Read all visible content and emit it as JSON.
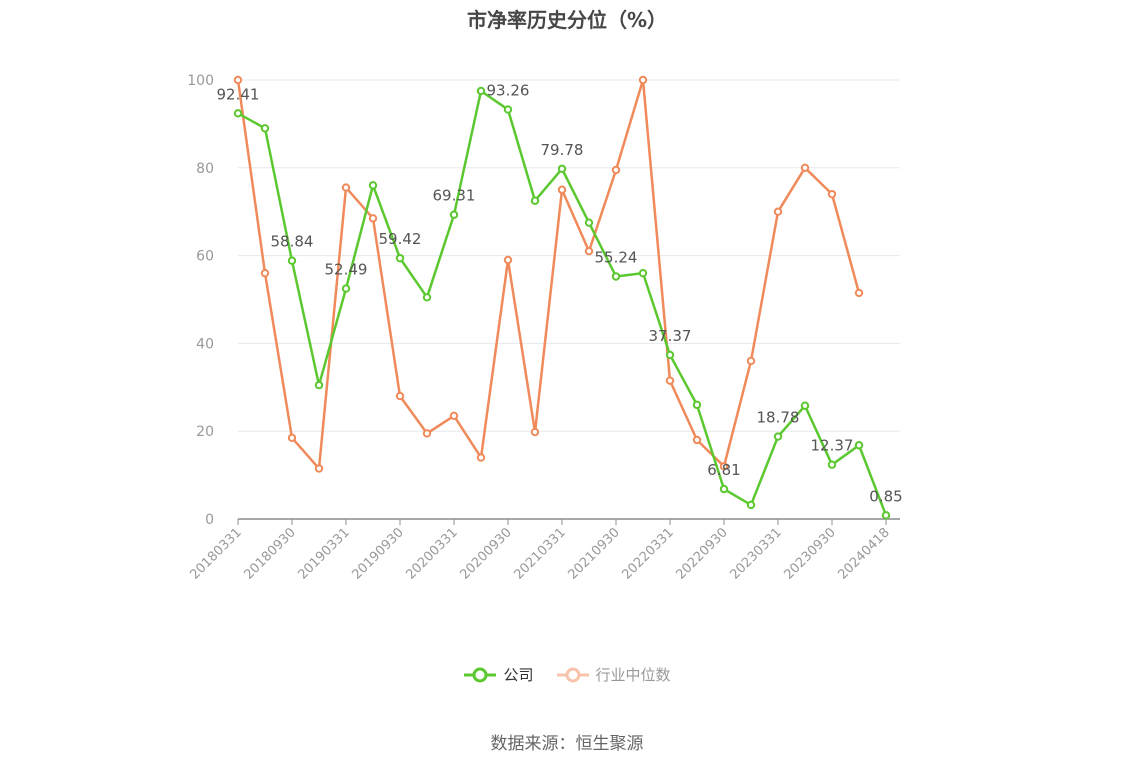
{
  "title": "市净率历史分位（%）",
  "source": "数据来源：恒生聚源",
  "colors": {
    "company": "#5bc82f",
    "industry": "#f08a5a",
    "grid": "#e6e8ef",
    "axis": "#8c8c8c",
    "tick_text": "#999999",
    "label_text": "#555555"
  },
  "chart_data": {
    "type": "line",
    "title": "市净率历史分位（%）",
    "ylim": [
      0,
      100
    ],
    "yticks": [
      0,
      20,
      40,
      60,
      80,
      100
    ],
    "grid": true,
    "legend_position": "bottom",
    "x": [
      "20180331",
      "20180630",
      "20180930",
      "20181231",
      "20190331",
      "20190630",
      "20190930",
      "20191231",
      "20200331",
      "20200630",
      "20200930",
      "20201231",
      "20210331",
      "20210630",
      "20210930",
      "20211231",
      "20220331",
      "20220630",
      "20220930",
      "20221231",
      "20230331",
      "20230630",
      "20230930",
      "20231231",
      "20240418"
    ],
    "x_tick_labels": [
      "20180331",
      "20180930",
      "20190331",
      "20190930",
      "20200331",
      "20200930",
      "20210331",
      "20210930",
      "20220331",
      "20220930",
      "20230331",
      "20230930",
      "20240418"
    ],
    "x_tick_indices": [
      0,
      2,
      4,
      6,
      8,
      10,
      12,
      14,
      16,
      18,
      20,
      22,
      24
    ],
    "series": [
      {
        "name": "公司",
        "color": "#5bc82f",
        "values": [
          92.41,
          89.0,
          58.84,
          30.5,
          52.49,
          76.0,
          59.42,
          50.5,
          69.31,
          97.5,
          93.26,
          72.5,
          79.78,
          67.5,
          55.24,
          56.0,
          37.37,
          26.0,
          6.81,
          3.2,
          18.78,
          25.8,
          12.37,
          16.8,
          0.85
        ],
        "labels": {
          "0": "92.41",
          "2": "58.84",
          "4": "52.49",
          "6": "59.42",
          "8": "69.31",
          "10": "93.26",
          "12": "79.78",
          "14": "55.24",
          "16": "37.37",
          "18": "6.81",
          "20": "18.78",
          "22": "12.37",
          "24": "0.85"
        }
      },
      {
        "name": "行业中位数",
        "color": "#f08a5a",
        "values": [
          100.0,
          56.0,
          18.5,
          11.5,
          75.5,
          68.5,
          28.0,
          19.5,
          23.5,
          14.0,
          59.0,
          19.8,
          75.0,
          61.0,
          79.5,
          100.0,
          31.5,
          18.0,
          12.0,
          36.0,
          70.0,
          80.0,
          74.0,
          51.5,
          null
        ]
      }
    ]
  }
}
